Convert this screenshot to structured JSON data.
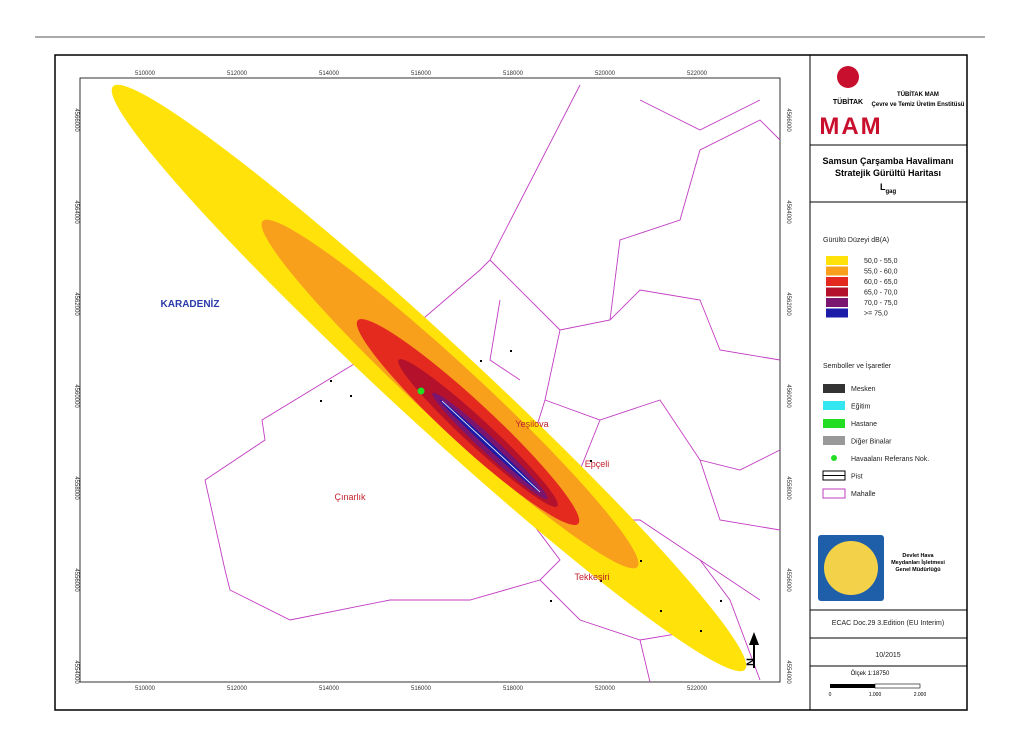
{
  "map": {
    "labels": [
      "KARADENİZ",
      "Yeşilova",
      "Epçeli",
      "Çınarlık",
      "Tekkeşiri"
    ],
    "north": "N",
    "x_ticks": [
      "510000",
      "512000",
      "514000",
      "516000",
      "518000",
      "520000",
      "522000"
    ],
    "y_ticks": [
      "4566000",
      "4564000",
      "4562000",
      "4560000",
      "4558000",
      "4556000",
      "4554000"
    ]
  },
  "sidebar": {
    "logo_text": "TÜBİTAK",
    "logo_mam": "MAM",
    "org": "TÜBİTAK MAM",
    "org_subtitle": "Çevre ve Temiz Üretim Enstitüsü",
    "title_line1": "Samsun Çarşamba Havalimanı",
    "title_line2": "Stratejik Gürültü Haritası",
    "metric_symbol": "L",
    "metric_subscript": "gag",
    "noise_legend": {
      "title": "Gürültü Düzeyi dB(A)",
      "items": [
        {
          "range": "50,0 - 55,0",
          "color": "#ffe20a"
        },
        {
          "range": "55,0 - 60,0",
          "color": "#f8a01c"
        },
        {
          "range": "60,0 - 65,0",
          "color": "#e42a1e"
        },
        {
          "range": "65,0 - 70,0",
          "color": "#b3112c"
        },
        {
          "range": "70,0 - 75,0",
          "color": "#7a1570"
        },
        {
          "range": ">= 75,0",
          "color": "#1c1ca8"
        }
      ]
    },
    "symbols": {
      "title": "Semboller ve İşaretler",
      "items": [
        "Mesken",
        "Eğitim",
        "Hastane",
        "Diğer Binalar",
        "Havaalanı Referans Nok.",
        "Pist",
        "Mahalle"
      ]
    },
    "authority": [
      "Devlet Hava",
      "Meydanları İşletmesi",
      "Genel Müdürlüğü"
    ],
    "source": "ECAC Doc.29 3.Edition (EU Interim)",
    "date": "10/2015",
    "scale": "Ölçek 1:18750",
    "scale_ticks": [
      "0",
      "1.000",
      "2.000"
    ]
  }
}
